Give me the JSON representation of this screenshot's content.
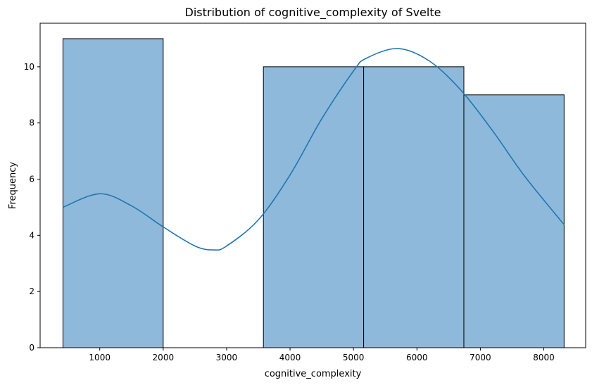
{
  "chart_data": {
    "type": "bar",
    "title": "Distribution of cognitive_complexity of Svelte",
    "xlabel": "cognitive_complexity",
    "ylabel": "Frequency",
    "xlim": [
      60,
      8660
    ],
    "ylim": [
      0,
      11.55
    ],
    "x_ticks": [
      1000,
      2000,
      3000,
      4000,
      5000,
      6000,
      7000,
      8000
    ],
    "y_ticks": [
      0,
      2,
      4,
      6,
      8,
      10
    ],
    "grid": false,
    "bars": [
      {
        "x0": 420,
        "x1": 2000,
        "count": 11
      },
      {
        "x0": 2000,
        "x1": 3580,
        "count": 0
      },
      {
        "x0": 3580,
        "x1": 5160,
        "count": 10
      },
      {
        "x0": 5160,
        "x1": 6740,
        "count": 10
      },
      {
        "x0": 6740,
        "x1": 8320,
        "count": 9
      }
    ],
    "kde": {
      "x": [
        420,
        1000,
        1500,
        2000,
        2500,
        2800,
        3000,
        3500,
        4000,
        4500,
        5000,
        5200,
        5700,
        6200,
        6700,
        7200,
        7700,
        8320
      ],
      "y": [
        5.0,
        5.48,
        5.05,
        4.3,
        3.62,
        3.48,
        3.62,
        4.55,
        6.15,
        8.15,
        9.85,
        10.3,
        10.65,
        10.2,
        9.15,
        7.7,
        6.1,
        4.38
      ]
    },
    "colors": {
      "bar_fill": "#8fb9da",
      "bar_edge": "#000000",
      "kde_line": "#1f77b4"
    }
  }
}
